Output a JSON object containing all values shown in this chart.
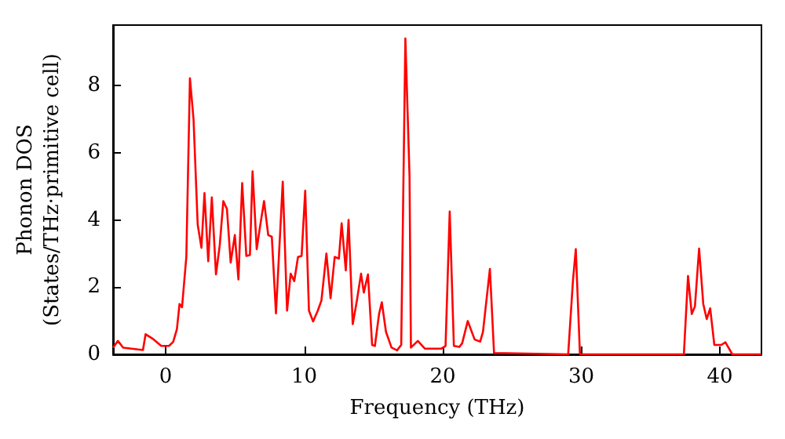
{
  "chart_data": {
    "type": "line",
    "xlabel": "Frequency (THz)",
    "ylabel": "Phonon DOS\n(States/THz·primitive cell)",
    "xlim": [
      -3.8,
      43
    ],
    "xticks": [
      0,
      10,
      20,
      30,
      40
    ],
    "ylim": [
      0,
      9.8
    ],
    "yticks": [
      0,
      2,
      4,
      6,
      8
    ],
    "marker": "none",
    "line_style": "solid",
    "series": [
      {
        "color": "#ff0000",
        "x": [
          -3.79,
          -3.45,
          -3.07,
          -1.64,
          -1.45,
          -0.89,
          -0.32,
          0.24,
          0.54,
          0.81,
          1.0,
          1.18,
          1.49,
          1.75,
          2.01,
          2.31,
          2.58,
          2.8,
          3.07,
          3.33,
          3.63,
          3.9,
          4.16,
          4.42,
          4.69,
          4.99,
          5.25,
          5.52,
          5.82,
          6.08,
          6.27,
          6.57,
          6.83,
          7.1,
          7.4,
          7.66,
          7.96,
          8.45,
          8.76,
          9.02,
          9.28,
          9.55,
          9.81,
          10.07,
          10.34,
          10.64,
          10.98,
          11.24,
          11.6,
          11.9,
          12.2,
          12.5,
          12.7,
          13.0,
          13.2,
          13.5,
          13.8,
          14.1,
          14.3,
          14.6,
          14.9,
          15.1,
          15.4,
          15.6,
          15.9,
          16.3,
          16.7,
          17.0,
          17.3,
          17.6,
          17.7,
          18.2,
          18.7,
          19.9,
          20.2,
          20.5,
          20.8,
          21.2,
          21.4,
          21.8,
          22.3,
          22.7,
          22.9,
          23.4,
          23.7,
          29.05,
          29.4,
          29.6,
          29.9,
          37.4,
          37.7,
          37.97,
          38.2,
          38.5,
          38.8,
          39.05,
          39.3,
          39.6,
          40.1,
          40.4,
          40.9,
          43
        ],
        "values": [
          0.2,
          0.4,
          0.2,
          0.13,
          0.6,
          0.45,
          0.25,
          0.25,
          0.37,
          0.75,
          1.5,
          1.4,
          2.9,
          8.22,
          7.0,
          3.86,
          3.17,
          4.8,
          2.77,
          4.67,
          2.38,
          3.24,
          4.56,
          4.33,
          2.73,
          3.55,
          2.23,
          5.1,
          2.93,
          2.96,
          5.45,
          3.13,
          3.86,
          4.56,
          3.55,
          3.5,
          1.22,
          5.14,
          1.3,
          2.4,
          2.18,
          2.9,
          2.93,
          4.87,
          1.3,
          0.98,
          1.3,
          1.6,
          3.0,
          1.67,
          2.9,
          2.85,
          3.9,
          2.5,
          4.0,
          0.9,
          1.6,
          2.4,
          1.84,
          2.38,
          0.28,
          0.25,
          1.2,
          1.55,
          0.67,
          0.2,
          0.12,
          0.28,
          9.4,
          5.3,
          0.2,
          0.4,
          0.17,
          0.17,
          0.25,
          4.25,
          0.25,
          0.22,
          0.33,
          0.99,
          0.44,
          0.38,
          0.67,
          2.54,
          0.04,
          0,
          2.22,
          3.13,
          0,
          0,
          2.33,
          1.2,
          1.43,
          3.15,
          1.5,
          1.05,
          1.37,
          0.28,
          0.28,
          0.36,
          0,
          0
        ]
      }
    ]
  }
}
